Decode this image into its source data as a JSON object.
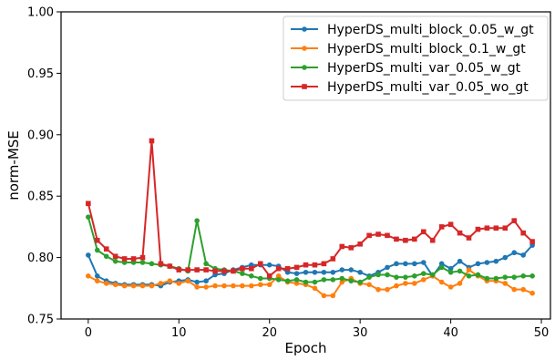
{
  "chart_data": {
    "type": "line",
    "title": "",
    "xlabel": "Epoch",
    "ylabel": "norm-MSE",
    "xlim": [
      -3,
      51
    ],
    "ylim": [
      0.75,
      1.0
    ],
    "xticks": [
      0,
      10,
      20,
      30,
      40,
      50
    ],
    "yticks": [
      0.75,
      0.8,
      0.85,
      0.9,
      0.95,
      1.0
    ],
    "xtick_labels": [
      "0",
      "10",
      "20",
      "30",
      "40",
      "50"
    ],
    "ytick_labels": [
      "0.75",
      "0.80",
      "0.85",
      "0.90",
      "0.95",
      "1.00"
    ],
    "grid": false,
    "legend_position": "top-right",
    "x": [
      0,
      1,
      2,
      3,
      4,
      5,
      6,
      7,
      8,
      9,
      10,
      11,
      12,
      13,
      14,
      15,
      16,
      17,
      18,
      19,
      20,
      21,
      22,
      23,
      24,
      25,
      26,
      27,
      28,
      29,
      30,
      31,
      32,
      33,
      34,
      35,
      36,
      37,
      38,
      39,
      40,
      41,
      42,
      43,
      44,
      45,
      46,
      47,
      48,
      49
    ],
    "series": [
      {
        "name": "HyperDS_multi_block_0.05_w_gt",
        "color": "#1f77b4",
        "marker": "circle",
        "values": [
          0.802,
          0.785,
          0.781,
          0.779,
          0.778,
          0.778,
          0.778,
          0.778,
          0.777,
          0.78,
          0.781,
          0.782,
          0.78,
          0.781,
          0.786,
          0.787,
          0.79,
          0.792,
          0.794,
          0.794,
          0.794,
          0.793,
          0.788,
          0.787,
          0.788,
          0.788,
          0.788,
          0.788,
          0.79,
          0.79,
          0.788,
          0.785,
          0.788,
          0.792,
          0.795,
          0.795,
          0.795,
          0.796,
          0.785,
          0.795,
          0.791,
          0.797,
          0.792,
          0.795,
          0.796,
          0.797,
          0.8,
          0.804,
          0.802,
          0.81
        ]
      },
      {
        "name": "HyperDS_multi_block_0.1_w_gt",
        "color": "#ff7f0e",
        "marker": "circle",
        "values": [
          0.785,
          0.781,
          0.779,
          0.778,
          0.777,
          0.777,
          0.777,
          0.777,
          0.779,
          0.781,
          0.779,
          0.781,
          0.776,
          0.776,
          0.777,
          0.777,
          0.777,
          0.777,
          0.777,
          0.778,
          0.778,
          0.785,
          0.78,
          0.779,
          0.778,
          0.775,
          0.769,
          0.769,
          0.78,
          0.783,
          0.779,
          0.778,
          0.774,
          0.774,
          0.777,
          0.779,
          0.779,
          0.782,
          0.785,
          0.78,
          0.776,
          0.779,
          0.79,
          0.785,
          0.781,
          0.781,
          0.779,
          0.774,
          0.774,
          0.771
        ]
      },
      {
        "name": "HyperDS_multi_var_0.05_w_gt",
        "color": "#2ca02c",
        "marker": "circle",
        "values": [
          0.833,
          0.806,
          0.801,
          0.797,
          0.796,
          0.796,
          0.796,
          0.795,
          0.794,
          0.793,
          0.791,
          0.789,
          0.83,
          0.795,
          0.791,
          0.79,
          0.789,
          0.787,
          0.785,
          0.783,
          0.783,
          0.782,
          0.781,
          0.782,
          0.78,
          0.78,
          0.782,
          0.782,
          0.783,
          0.781,
          0.78,
          0.784,
          0.786,
          0.786,
          0.784,
          0.784,
          0.785,
          0.787,
          0.786,
          0.792,
          0.788,
          0.789,
          0.785,
          0.786,
          0.783,
          0.783,
          0.784,
          0.784,
          0.785,
          0.785
        ]
      },
      {
        "name": "HyperDS_multi_var_0.05_wo_gt",
        "color": "#d62728",
        "marker": "square",
        "values": [
          0.844,
          0.814,
          0.807,
          0.801,
          0.799,
          0.799,
          0.8,
          0.895,
          0.795,
          0.793,
          0.79,
          0.79,
          0.79,
          0.79,
          0.789,
          0.789,
          0.789,
          0.791,
          0.791,
          0.795,
          0.785,
          0.791,
          0.791,
          0.792,
          0.794,
          0.794,
          0.795,
          0.799,
          0.809,
          0.808,
          0.811,
          0.818,
          0.819,
          0.818,
          0.815,
          0.814,
          0.815,
          0.821,
          0.814,
          0.825,
          0.827,
          0.82,
          0.816,
          0.823,
          0.824,
          0.824,
          0.824,
          0.83,
          0.82,
          0.813
        ]
      }
    ]
  }
}
